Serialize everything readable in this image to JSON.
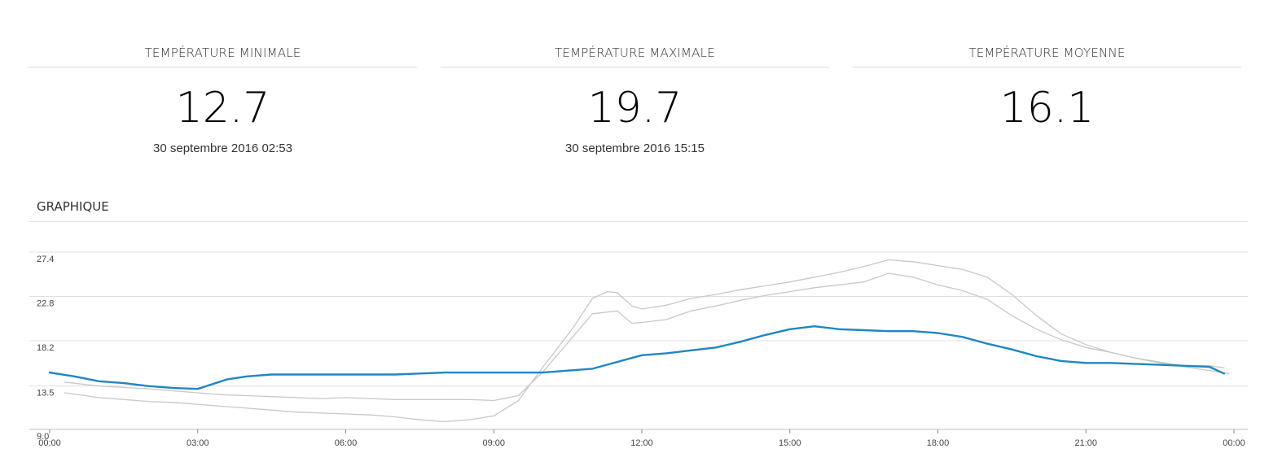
{
  "stats": {
    "min": {
      "label": "TEMPÉRATURE MINIMALE",
      "value": "12.7",
      "date": "30 septembre 2016 02:53"
    },
    "max": {
      "label": "TEMPÉRATURE MAXIMALE",
      "value": "19.7",
      "date": "30 septembre 2016 15:15"
    },
    "avg": {
      "label": "TEMPÉRATURE MOYENNE",
      "value": "16.1"
    }
  },
  "graph": {
    "title": "GRAPHIQUE"
  },
  "chart_data": {
    "type": "line",
    "title": "",
    "xlabel": "",
    "ylabel": "",
    "x_ticks": [
      "00:00",
      "03:00",
      "06:00",
      "09:00",
      "12:00",
      "15:00",
      "18:00",
      "21:00",
      "00:00"
    ],
    "y_ticks": [
      "9.0",
      "13.5",
      "18.2",
      "22.8",
      "27.4"
    ],
    "ylim": [
      9.0,
      27.4
    ],
    "xlim": [
      0,
      24
    ],
    "grid": true,
    "colors": {
      "main": "#1f86c2",
      "reference": "#c8c8c8"
    },
    "series": [
      {
        "role": "main",
        "x": [
          0,
          0.5,
          1,
          1.5,
          2,
          2.5,
          3,
          3.3,
          3.6,
          4,
          4.5,
          5,
          5.5,
          6,
          6.5,
          7,
          7.5,
          8,
          8.5,
          9,
          9.5,
          10,
          10.5,
          11,
          11.5,
          12,
          12.5,
          13,
          13.5,
          14,
          14.5,
          15,
          15.5,
          16,
          16.5,
          17,
          17.5,
          18,
          18.5,
          19,
          19.5,
          20,
          20.5,
          21,
          21.5,
          22,
          22.5,
          23,
          23.5,
          23.8
        ],
        "y": [
          14.9,
          14.5,
          14.0,
          13.8,
          13.5,
          13.3,
          13.2,
          13.7,
          14.2,
          14.5,
          14.7,
          14.7,
          14.7,
          14.7,
          14.7,
          14.7,
          14.8,
          14.9,
          14.9,
          14.9,
          14.9,
          14.9,
          15.1,
          15.3,
          16.0,
          16.7,
          16.9,
          17.2,
          17.5,
          18.1,
          18.8,
          19.4,
          19.7,
          19.4,
          19.3,
          19.2,
          19.2,
          19.0,
          18.6,
          17.9,
          17.3,
          16.6,
          16.1,
          15.9,
          15.9,
          15.8,
          15.7,
          15.6,
          15.5,
          14.8
        ]
      },
      {
        "role": "reference-upper",
        "x": [
          0.3,
          1,
          2,
          3,
          3.5,
          4,
          4.5,
          5,
          5.5,
          6,
          6.5,
          7,
          7.5,
          8,
          8.5,
          9,
          9.5,
          10,
          10.5,
          11,
          11.5,
          11.8,
          12,
          12.5,
          13,
          13.5,
          14,
          14.5,
          15,
          15.5,
          16,
          16.5,
          17,
          17.5,
          18,
          18.5,
          19,
          19.5,
          20,
          20.5,
          21,
          21.5,
          22,
          22.5,
          23,
          23.5,
          23.9
        ],
        "y": [
          13.9,
          13.5,
          13.2,
          12.8,
          12.6,
          12.5,
          12.4,
          12.3,
          12.2,
          12.3,
          12.2,
          12.1,
          12.1,
          12.1,
          12.1,
          12.0,
          12.5,
          15.0,
          18.0,
          21.0,
          21.3,
          20.0,
          20.1,
          20.4,
          21.3,
          21.8,
          22.4,
          22.9,
          23.3,
          23.7,
          24.0,
          24.3,
          25.2,
          24.8,
          24.0,
          23.4,
          22.5,
          20.8,
          19.4,
          18.3,
          17.5,
          17.0,
          16.4,
          15.9,
          15.5,
          15.1,
          14.8
        ]
      },
      {
        "role": "reference-lower",
        "x": [
          0.3,
          1,
          2,
          2.5,
          3,
          3.5,
          4,
          4.5,
          5,
          5.5,
          6,
          6.5,
          7,
          7.5,
          8,
          8.5,
          9,
          9.5,
          10,
          10.3,
          10.6,
          11,
          11.3,
          11.5,
          11.8,
          12,
          12.5,
          13,
          13.5,
          14,
          14.5,
          15,
          15.5,
          16,
          16.5,
          17,
          17.5,
          18,
          18.5,
          19,
          19.5,
          20,
          20.5,
          21,
          21.5,
          22,
          22.5,
          23,
          23.5,
          23.8
        ],
        "y": [
          12.8,
          12.3,
          11.9,
          11.8,
          11.6,
          11.4,
          11.2,
          11.0,
          10.8,
          10.7,
          10.6,
          10.5,
          10.3,
          10.0,
          9.8,
          10.0,
          10.4,
          12.0,
          15.5,
          17.5,
          19.5,
          22.6,
          23.3,
          23.2,
          21.8,
          21.5,
          21.9,
          22.6,
          23.0,
          23.5,
          23.9,
          24.3,
          24.8,
          25.3,
          25.9,
          26.6,
          26.4,
          26.0,
          25.6,
          24.8,
          23.0,
          20.8,
          18.9,
          17.8,
          17.0,
          16.4,
          16.0,
          15.6,
          15.6,
          15.4
        ]
      }
    ]
  }
}
